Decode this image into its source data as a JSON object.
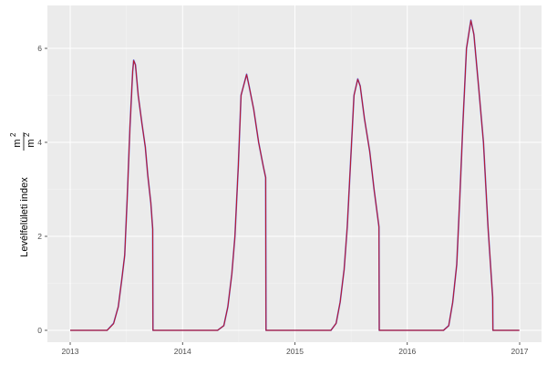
{
  "chart_data": {
    "type": "line",
    "title": "",
    "xlabel": "",
    "ylabel": "Levélfelületi index",
    "ylabel_unit_num": "m",
    "ylabel_unit_den": "m",
    "ylabel_unit_exp": "2",
    "xlim": [
      "2012-10-20",
      "2017-03-15"
    ],
    "ylim": [
      -0.33,
      6.93
    ],
    "x_ticks": [
      "2013",
      "2014",
      "2015",
      "2016",
      "2017"
    ],
    "y_ticks": [
      "0",
      "2",
      "4",
      "6"
    ],
    "grid": true,
    "legend": "none",
    "series": [
      {
        "color": "#6a5acd",
        "points": [
          [
            "2013-01-01",
            0
          ],
          [
            "2013-05-01",
            0
          ],
          [
            "2013-05-22",
            0.15
          ],
          [
            "2013-06-06",
            0.5
          ],
          [
            "2013-06-18",
            1.1
          ],
          [
            "2013-06-27",
            1.6
          ],
          [
            "2013-07-05",
            2.8
          ],
          [
            "2013-07-14",
            4.3
          ],
          [
            "2013-07-23",
            5.5
          ],
          [
            "2013-07-26",
            5.75
          ],
          [
            "2013-08-01",
            5.65
          ],
          [
            "2013-08-10",
            5.0
          ],
          [
            "2013-08-22",
            4.4
          ],
          [
            "2013-09-02",
            3.9
          ],
          [
            "2013-09-10",
            3.3
          ],
          [
            "2013-09-20",
            2.7
          ],
          [
            "2013-09-26",
            2.15
          ],
          [
            "2013-09-27",
            0
          ],
          [
            "2014-04-25",
            0
          ],
          [
            "2014-05-15",
            0.1
          ],
          [
            "2014-05-28",
            0.5
          ],
          [
            "2014-06-10",
            1.2
          ],
          [
            "2014-06-20",
            2.0
          ],
          [
            "2014-07-01",
            3.5
          ],
          [
            "2014-07-10",
            5.0
          ],
          [
            "2014-07-28",
            5.45
          ],
          [
            "2014-08-05",
            5.2
          ],
          [
            "2014-08-20",
            4.7
          ],
          [
            "2014-09-05",
            4.0
          ],
          [
            "2014-09-20",
            3.5
          ],
          [
            "2014-09-28",
            3.25
          ],
          [
            "2014-09-29",
            0
          ],
          [
            "2015-04-28",
            0
          ],
          [
            "2015-05-15",
            0.15
          ],
          [
            "2015-05-28",
            0.6
          ],
          [
            "2015-06-10",
            1.3
          ],
          [
            "2015-06-20",
            2.2
          ],
          [
            "2015-07-01",
            3.6
          ],
          [
            "2015-07-12",
            5.0
          ],
          [
            "2015-07-24",
            5.35
          ],
          [
            "2015-08-01",
            5.2
          ],
          [
            "2015-08-15",
            4.5
          ],
          [
            "2015-09-01",
            3.8
          ],
          [
            "2015-09-15",
            3.0
          ],
          [
            "2015-10-01",
            2.2
          ],
          [
            "2015-10-02",
            0
          ],
          [
            "2016-04-28",
            0
          ],
          [
            "2016-05-15",
            0.1
          ],
          [
            "2016-05-28",
            0.6
          ],
          [
            "2016-06-10",
            1.4
          ],
          [
            "2016-06-20",
            2.8
          ],
          [
            "2016-07-01",
            4.5
          ],
          [
            "2016-07-12",
            6.0
          ],
          [
            "2016-07-26",
            6.6
          ],
          [
            "2016-08-05",
            6.3
          ],
          [
            "2016-08-20",
            5.2
          ],
          [
            "2016-09-05",
            4.0
          ],
          [
            "2016-09-20",
            2.2
          ],
          [
            "2016-10-05",
            0.7
          ],
          [
            "2016-10-06",
            0
          ],
          [
            "2016-12-31",
            0
          ]
        ]
      },
      {
        "color": "#c0141e",
        "points": [
          [
            "2013-01-01",
            0
          ],
          [
            "2013-05-01",
            0
          ],
          [
            "2013-05-22",
            0.14
          ],
          [
            "2013-06-06",
            0.5
          ],
          [
            "2013-06-18",
            1.1
          ],
          [
            "2013-06-27",
            1.6
          ],
          [
            "2013-07-05",
            2.8
          ],
          [
            "2013-07-14",
            4.3
          ],
          [
            "2013-07-23",
            5.5
          ],
          [
            "2013-07-26",
            5.74
          ],
          [
            "2013-08-01",
            5.64
          ],
          [
            "2013-08-10",
            5.0
          ],
          [
            "2013-08-22",
            4.4
          ],
          [
            "2013-09-02",
            3.9
          ],
          [
            "2013-09-10",
            3.3
          ],
          [
            "2013-09-20",
            2.7
          ],
          [
            "2013-09-26",
            2.15
          ],
          [
            "2013-09-27",
            0
          ],
          [
            "2014-04-25",
            0
          ],
          [
            "2014-05-15",
            0.1
          ],
          [
            "2014-05-28",
            0.5
          ],
          [
            "2014-06-10",
            1.2
          ],
          [
            "2014-06-20",
            2.0
          ],
          [
            "2014-07-01",
            3.5
          ],
          [
            "2014-07-10",
            5.0
          ],
          [
            "2014-07-28",
            5.44
          ],
          [
            "2014-08-05",
            5.2
          ],
          [
            "2014-08-20",
            4.7
          ],
          [
            "2014-09-05",
            4.0
          ],
          [
            "2014-09-20",
            3.5
          ],
          [
            "2014-09-28",
            3.25
          ],
          [
            "2014-09-29",
            0
          ],
          [
            "2015-04-28",
            0
          ],
          [
            "2015-05-15",
            0.15
          ],
          [
            "2015-05-28",
            0.6
          ],
          [
            "2015-06-10",
            1.3
          ],
          [
            "2015-06-20",
            2.2
          ],
          [
            "2015-07-01",
            3.6
          ],
          [
            "2015-07-12",
            5.0
          ],
          [
            "2015-07-24",
            5.34
          ],
          [
            "2015-08-01",
            5.2
          ],
          [
            "2015-08-15",
            4.5
          ],
          [
            "2015-09-01",
            3.8
          ],
          [
            "2015-09-15",
            3.0
          ],
          [
            "2015-10-01",
            2.2
          ],
          [
            "2015-10-02",
            0
          ],
          [
            "2016-04-28",
            0
          ],
          [
            "2016-05-15",
            0.1
          ],
          [
            "2016-05-28",
            0.6
          ],
          [
            "2016-06-10",
            1.4
          ],
          [
            "2016-06-20",
            2.8
          ],
          [
            "2016-07-01",
            4.5
          ],
          [
            "2016-07-12",
            6.0
          ],
          [
            "2016-07-26",
            6.59
          ],
          [
            "2016-08-05",
            6.3
          ],
          [
            "2016-08-20",
            5.2
          ],
          [
            "2016-09-05",
            4.0
          ],
          [
            "2016-09-20",
            2.2
          ],
          [
            "2016-10-05",
            0.7
          ],
          [
            "2016-10-06",
            0
          ],
          [
            "2016-12-31",
            0
          ]
        ]
      }
    ]
  }
}
